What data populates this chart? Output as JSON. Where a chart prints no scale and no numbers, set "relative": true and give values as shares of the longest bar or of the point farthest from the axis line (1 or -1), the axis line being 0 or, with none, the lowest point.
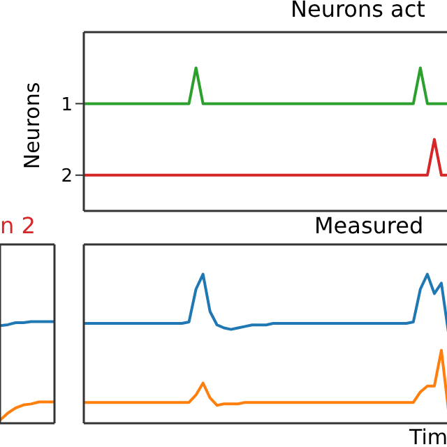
{
  "chart_data": [
    {
      "type": "line",
      "title": "Neurons act",
      "ylabel": "Neurons",
      "categories": [
        null,
        null,
        null,
        null,
        null,
        null,
        null,
        null,
        null,
        null,
        null,
        null,
        null,
        null,
        null,
        null,
        null,
        null,
        null,
        null,
        null,
        null,
        null,
        null,
        null,
        null,
        null,
        null,
        null,
        null,
        null,
        null,
        null,
        null,
        null,
        null,
        null,
        null,
        null,
        null,
        null,
        null,
        null,
        null,
        null,
        null,
        null,
        null,
        null,
        null,
        null,
        null,
        null
      ],
      "ylim": [
        2.5,
        0
      ],
      "yticks": [
        1,
        2
      ],
      "tick_labels": "y",
      "series": [
        {
          "color": "#2ca02c",
          "values": [
            1,
            1,
            1,
            1,
            1,
            1,
            1,
            1,
            1,
            1,
            1,
            1,
            1,
            1,
            1,
            1,
            0.5,
            1,
            1,
            1,
            1,
            1,
            1,
            1,
            1,
            1,
            1,
            1,
            1,
            1,
            1,
            1,
            1,
            1,
            1,
            1,
            1,
            1,
            1,
            1,
            1,
            1,
            1,
            1,
            1,
            1,
            1,
            1,
            0.5,
            1,
            1,
            1,
            1
          ]
        },
        {
          "color": "#d62728",
          "values": [
            2,
            2,
            2,
            2,
            2,
            2,
            2,
            2,
            2,
            2,
            2,
            2,
            2,
            2,
            2,
            2,
            2,
            2,
            2,
            2,
            2,
            2,
            2,
            2,
            2,
            2,
            2,
            2,
            2,
            2,
            2,
            2,
            2,
            2,
            2,
            2,
            2,
            2,
            2,
            2,
            2,
            2,
            2,
            2,
            2,
            2,
            2,
            2,
            2,
            2,
            1.5,
            2,
            2
          ]
        }
      ]
    },
    {
      "type": "line",
      "title": "n 2",
      "categories": [
        null,
        null,
        null,
        null,
        null,
        null,
        null,
        null
      ],
      "relative": true,
      "tick_labels": false,
      "series": [
        {
          "color": "#1f77b4",
          "values": [
            0.96,
            0.97,
            0.99,
            0.99,
            1,
            1,
            1,
            1
          ]
        },
        {
          "color": "#ff7f0e",
          "values": [
            0.03,
            0.1,
            0.15,
            0.18,
            0.19,
            0.21,
            0.21,
            0.21
          ]
        }
      ]
    },
    {
      "type": "line",
      "title": "Measured",
      "xlabel": "Tim",
      "categories": [
        null,
        null,
        null,
        null,
        null,
        null,
        null,
        null,
        null,
        null,
        null,
        null,
        null,
        null,
        null,
        null,
        null,
        null,
        null,
        null,
        null,
        null,
        null,
        null,
        null,
        null,
        null,
        null,
        null,
        null,
        null,
        null,
        null,
        null,
        null,
        null,
        null,
        null,
        null,
        null,
        null,
        null,
        null,
        null,
        null,
        null,
        null,
        null,
        null,
        null,
        null,
        null,
        null
      ],
      "relative": true,
      "tick_labels": false,
      "series": [
        {
          "color": "#1f77b4",
          "values": [
            0.67,
            0.67,
            0.67,
            0.67,
            0.67,
            0.67,
            0.67,
            0.67,
            0.67,
            0.67,
            0.67,
            0.67,
            0.67,
            0.67,
            0.67,
            0.68,
            0.9,
            1,
            0.75,
            0.66,
            0.64,
            0.63,
            0.64,
            0.65,
            0.66,
            0.66,
            0.66,
            0.67,
            0.67,
            0.67,
            0.67,
            0.67,
            0.67,
            0.67,
            0.67,
            0.67,
            0.67,
            0.67,
            0.67,
            0.67,
            0.67,
            0.67,
            0.67,
            0.67,
            0.67,
            0.67,
            0.67,
            0.68,
            0.9,
            1,
            0.87,
            0.94,
            0.61
          ]
        },
        {
          "color": "#ff7f0e",
          "values": [
            0.14,
            0.14,
            0.14,
            0.14,
            0.14,
            0.14,
            0.14,
            0.14,
            0.14,
            0.14,
            0.14,
            0.14,
            0.14,
            0.14,
            0.14,
            0.14,
            0.19,
            0.27,
            0.17,
            0.12,
            0.13,
            0.13,
            0.13,
            0.14,
            0.14,
            0.14,
            0.14,
            0.14,
            0.14,
            0.14,
            0.14,
            0.14,
            0.14,
            0.14,
            0.14,
            0.14,
            0.14,
            0.14,
            0.14,
            0.14,
            0.14,
            0.14,
            0.14,
            0.14,
            0.14,
            0.14,
            0.14,
            0.14,
            0.21,
            0.25,
            0.25,
            0.49,
            0.09
          ]
        }
      ]
    }
  ]
}
